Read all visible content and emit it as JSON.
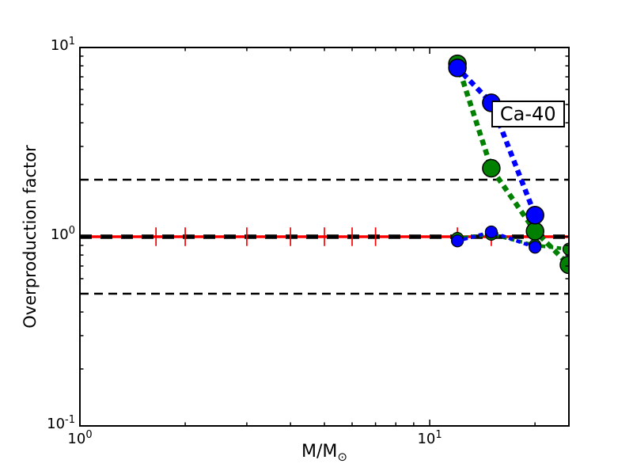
{
  "figure": {
    "background": "#ffffff",
    "frame_color": "#000000"
  },
  "axes": {
    "ylabel": "Overproduction factor",
    "xlabel_main": "M/M",
    "xlabel_sub": "⊙"
  },
  "annotation": {
    "text": "Ca-40"
  },
  "chart_data": {
    "type": "line",
    "title": "",
    "xlabel": "M/M⊙",
    "ylabel": "Overproduction factor",
    "xscale": "log",
    "yscale": "log",
    "xlim": [
      1,
      25
    ],
    "ylim": [
      0.1,
      10
    ],
    "grid": false,
    "x_major_ticks": [
      {
        "value": 1,
        "base": "10",
        "exp": "0"
      },
      {
        "value": 10,
        "base": "10",
        "exp": "1"
      }
    ],
    "x_minor_ticks": [
      2,
      3,
      4,
      5,
      6,
      7,
      8,
      9,
      20
    ],
    "y_major_ticks": [
      {
        "value": 10,
        "base": "10",
        "exp": "1"
      },
      {
        "value": 1,
        "base": "10",
        "exp": "0"
      },
      {
        "value": 0.1,
        "base": "10",
        "exp": "-1"
      }
    ],
    "y_minor_ticks": [
      0.2,
      0.3,
      0.4,
      0.5,
      0.6,
      0.7,
      0.8,
      0.9,
      2,
      3,
      4,
      5,
      6,
      7,
      8,
      9
    ],
    "reference_lines": [
      {
        "y": 2,
        "color": "#000000",
        "dash": "11 7",
        "width": 2.5
      },
      {
        "y": 0.5,
        "color": "#000000",
        "dash": "11 7",
        "width": 2.5
      },
      {
        "y": 1,
        "color": "#ff0000",
        "dash": null,
        "width": 3.5
      },
      {
        "y": 1,
        "color": "#000000",
        "dash": "15 11",
        "width": 5.5
      }
    ],
    "error_bars": {
      "color": "#ff0000",
      "y": 1,
      "x": [
        1.65,
        2,
        3,
        4,
        5,
        6,
        7,
        12,
        15,
        20
      ],
      "factor": 1.12,
      "line_width": 1.7
    },
    "series": [
      {
        "name": "green-near-unity",
        "color": "#008000",
        "x": [
          12,
          15,
          20,
          25
        ],
        "y": [
          0.98,
          1.03,
          0.9,
          0.86
        ],
        "marker_radius": 7.5,
        "line_width": 4.5,
        "dash": "1 9"
      },
      {
        "name": "blue-near-unity",
        "color": "#0000ff",
        "x": [
          12,
          15,
          20
        ],
        "y": [
          0.95,
          1.06,
          0.88
        ],
        "marker_radius": 7.5,
        "line_width": 4.5,
        "dash": "1 9"
      },
      {
        "name": "green-massive",
        "color": "#008000",
        "x": [
          12,
          15,
          20,
          25
        ],
        "y": [
          8.2,
          2.3,
          1.07,
          0.71
        ],
        "marker_radius": 11,
        "line_width": 6.5,
        "dash": "1 12"
      },
      {
        "name": "blue-massive",
        "color": "#0000ff",
        "x": [
          12,
          15,
          20
        ],
        "y": [
          7.8,
          5.1,
          1.3
        ],
        "marker_radius": 11,
        "line_width": 6.5,
        "dash": "1 12"
      }
    ],
    "annotation": {
      "text": "Ca-40",
      "x": 15,
      "y": 4.5
    }
  }
}
